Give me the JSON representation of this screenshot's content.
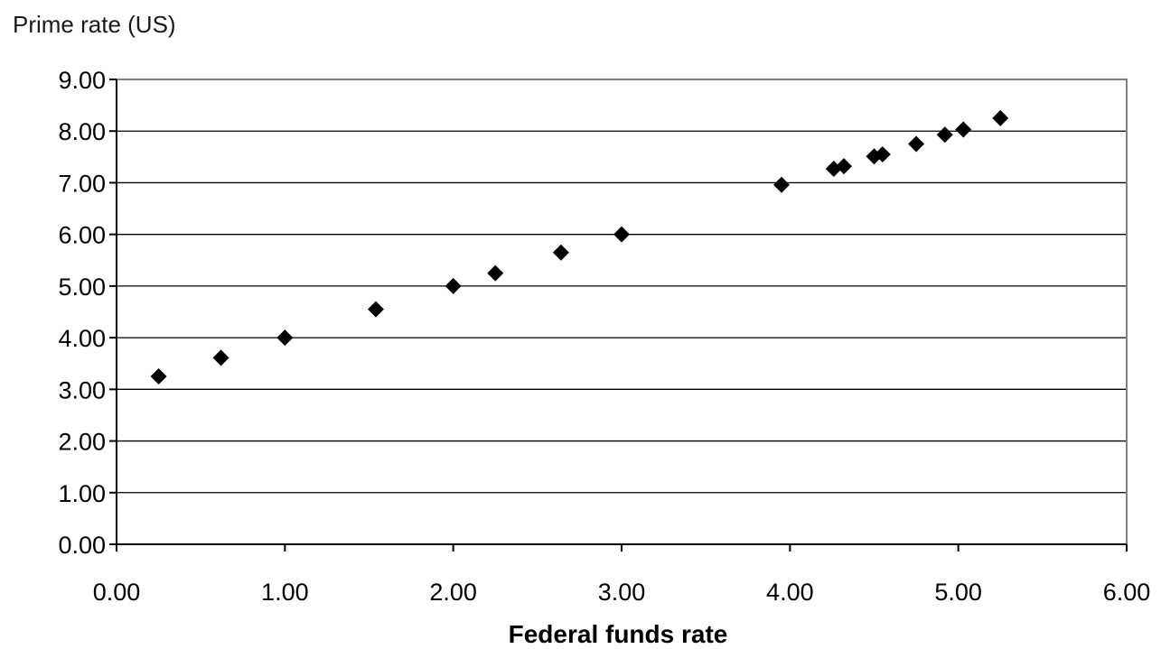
{
  "chart_data": {
    "type": "scatter",
    "xlabel": "Federal funds rate",
    "ylabel": "Prime rate (US)",
    "xlim": [
      0,
      6
    ],
    "ylim": [
      0,
      9
    ],
    "x_ticks": [
      "0.00",
      "1.00",
      "2.00",
      "3.00",
      "4.00",
      "5.00",
      "6.00"
    ],
    "y_ticks": [
      "0.00",
      "1.00",
      "2.00",
      "3.00",
      "4.00",
      "5.00",
      "6.00",
      "7.00",
      "8.00",
      "9.00"
    ],
    "grid": "horizontal",
    "marker": "diamond",
    "colors": {
      "marker": "#000000",
      "gridline": "#000000",
      "frame": "#808080",
      "axis": "#000000"
    },
    "series": [
      {
        "points": [
          {
            "x": 0.25,
            "y": 3.25
          },
          {
            "x": 0.62,
            "y": 3.61
          },
          {
            "x": 1.0,
            "y": 4.0
          },
          {
            "x": 1.54,
            "y": 4.55
          },
          {
            "x": 2.0,
            "y": 5.0
          },
          {
            "x": 2.25,
            "y": 5.25
          },
          {
            "x": 2.64,
            "y": 5.65
          },
          {
            "x": 3.0,
            "y": 6.0
          },
          {
            "x": 3.95,
            "y": 6.96
          },
          {
            "x": 4.26,
            "y": 7.27
          },
          {
            "x": 4.32,
            "y": 7.32
          },
          {
            "x": 4.5,
            "y": 7.51
          },
          {
            "x": 4.55,
            "y": 7.55
          },
          {
            "x": 4.75,
            "y": 7.75
          },
          {
            "x": 4.92,
            "y": 7.93
          },
          {
            "x": 5.03,
            "y": 8.03
          },
          {
            "x": 5.25,
            "y": 8.25
          }
        ]
      }
    ]
  }
}
